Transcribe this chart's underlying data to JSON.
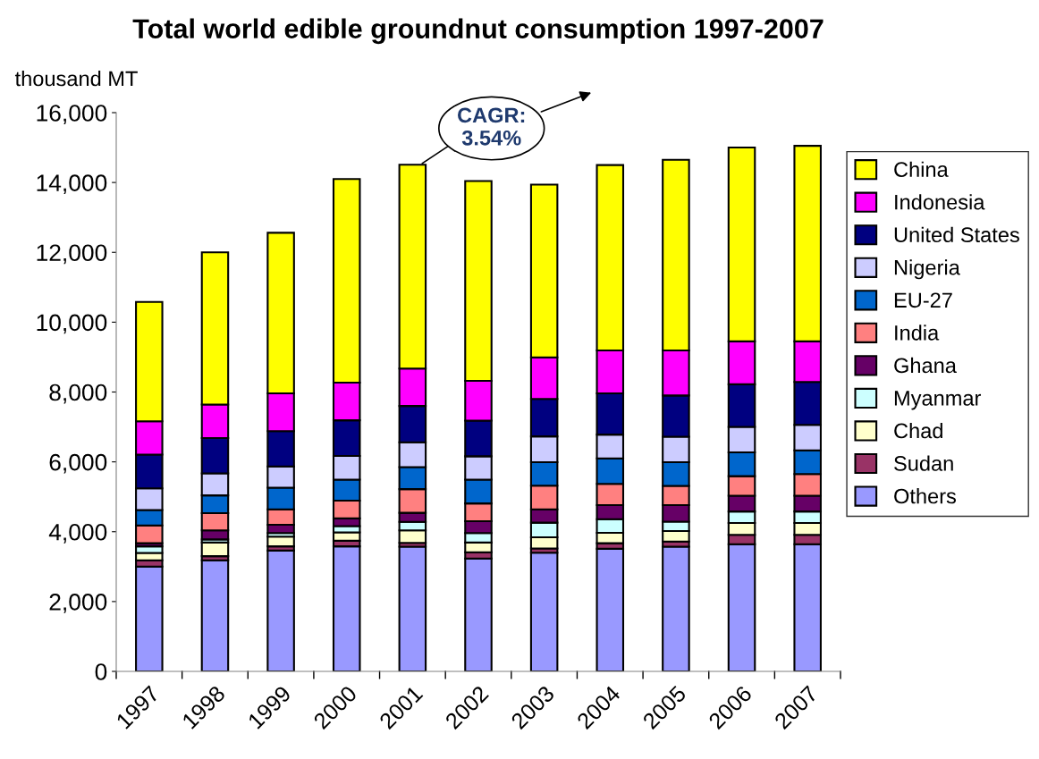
{
  "chart_data": {
    "type": "bar",
    "stacked": true,
    "title": "Total world edible groundnut consumption 1997-2007",
    "ylabel": "thousand MT",
    "categories": [
      "1997",
      "1998",
      "1999",
      "2000",
      "2001",
      "2002",
      "2003",
      "2004",
      "2005",
      "2006",
      "2007"
    ],
    "series": [
      {
        "name": "Others",
        "color": "#9999ff",
        "values": [
          3000,
          3180,
          3460,
          3580,
          3570,
          3230,
          3400,
          3510,
          3570,
          3640,
          3640
        ]
      },
      {
        "name": "Sudan",
        "color": "#993366",
        "values": [
          180,
          120,
          120,
          160,
          110,
          180,
          120,
          160,
          150,
          270,
          270
        ]
      },
      {
        "name": "Chad",
        "color": "#ffffcc",
        "values": [
          210,
          390,
          280,
          240,
          360,
          280,
          320,
          300,
          300,
          340,
          340
        ]
      },
      {
        "name": "Myanmar",
        "color": "#ccffff",
        "values": [
          190,
          90,
          100,
          180,
          240,
          270,
          420,
          390,
          270,
          330,
          330
        ]
      },
      {
        "name": "Ghana",
        "color": "#660066",
        "values": [
          90,
          260,
          240,
          220,
          260,
          340,
          380,
          400,
          470,
          450,
          450
        ]
      },
      {
        "name": "India",
        "color": "#ff8080",
        "values": [
          510,
          490,
          440,
          510,
          680,
          510,
          680,
          610,
          550,
          560,
          620
        ]
      },
      {
        "name": "EU-27",
        "color": "#0066cc",
        "values": [
          440,
          510,
          620,
          600,
          630,
          680,
          670,
          730,
          680,
          680,
          680
        ]
      },
      {
        "name": "Nigeria",
        "color": "#ccccff",
        "values": [
          620,
          630,
          610,
          680,
          710,
          670,
          740,
          680,
          730,
          730,
          730
        ]
      },
      {
        "name": "United States",
        "color": "#000080",
        "values": [
          970,
          1010,
          1010,
          1020,
          1040,
          1020,
          1070,
          1180,
          1180,
          1220,
          1230
        ]
      },
      {
        "name": "Indonesia",
        "color": "#ff00ff",
        "values": [
          950,
          960,
          1080,
          1080,
          1070,
          1140,
          1190,
          1230,
          1290,
          1230,
          1160
        ]
      },
      {
        "name": "China",
        "color": "#ffff00",
        "values": [
          3420,
          4360,
          4600,
          5830,
          5840,
          5720,
          4950,
          5310,
          5460,
          5550,
          5600
        ]
      }
    ],
    "ylim": [
      0,
      16000
    ],
    "yticks": [
      {
        "value": 0,
        "label": "0"
      },
      {
        "value": 2000,
        "label": "2,000"
      },
      {
        "value": 4000,
        "label": "4,000"
      },
      {
        "value": 6000,
        "label": "6,000"
      },
      {
        "value": 8000,
        "label": "8,000"
      },
      {
        "value": 10000,
        "label": "10,000"
      },
      {
        "value": 12000,
        "label": "12,000"
      },
      {
        "value": 14000,
        "label": "14,000"
      },
      {
        "value": 16000,
        "label": "16,000"
      }
    ],
    "grid": false,
    "legend": "right",
    "annotations": [
      {
        "text": "CAGR:\n3.54%",
        "x": "2001",
        "y": 14500
      }
    ]
  }
}
